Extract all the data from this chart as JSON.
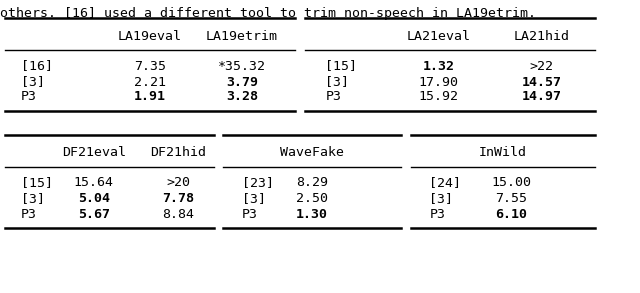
{
  "background_color": "#ffffff",
  "top_table": {
    "left_headers": [
      "LA19eval",
      "LA19etrim"
    ],
    "right_headers": [
      "LA21eval",
      "LA21hid"
    ],
    "rows": [
      {
        "col0": "[16]",
        "col1": "7.35",
        "col1_bold": false,
        "col2": "*35.32",
        "col2_bold": false,
        "col3": "[15]",
        "col4": "1.32",
        "col4_bold": true,
        "col5": ">22",
        "col5_bold": false
      },
      {
        "col0": "[3]",
        "col1": "2.21",
        "col1_bold": false,
        "col2": "3.79",
        "col2_bold": true,
        "col3": "[3]",
        "col4": "17.90",
        "col4_bold": false,
        "col5": "14.57",
        "col5_bold": true
      },
      {
        "col0": "P3",
        "col1": "1.91",
        "col1_bold": true,
        "col2": "3.28",
        "col2_bold": true,
        "col3": "P3",
        "col4": "15.92",
        "col4_bold": false,
        "col5": "14.97",
        "col5_bold": true
      }
    ]
  },
  "bottom_table": {
    "df_headers": [
      "DF21eval",
      "DF21hid"
    ],
    "wf_header": "WaveFake",
    "iw_header": "InWild",
    "rows": [
      {
        "col0": "[15]",
        "col1": "15.64",
        "col1_bold": false,
        "col2": ">20",
        "col2_bold": false,
        "col3": "[23]",
        "col4": "8.29",
        "col4_bold": false,
        "col5": "[24]",
        "col6": "15.00",
        "col6_bold": false
      },
      {
        "col0": "[3]",
        "col1": "5.04",
        "col1_bold": true,
        "col2": "7.78",
        "col2_bold": true,
        "col3": "[3]",
        "col4": "2.50",
        "col4_bold": false,
        "col5": "[3]",
        "col6": "7.55",
        "col6_bold": false
      },
      {
        "col0": "P3",
        "col1": "5.67",
        "col1_bold": true,
        "col2": "8.84",
        "col2_bold": false,
        "col3": "P3",
        "col4": "1.30",
        "col4_bold": true,
        "col5": "P3",
        "col6": "6.10",
        "col6_bold": true
      }
    ]
  },
  "partial_text": "others. [16] used a different tool to trim non-speech in LA19etrim.",
  "font_size": 9.5,
  "line_color": "#000000",
  "text_color": "#000000"
}
